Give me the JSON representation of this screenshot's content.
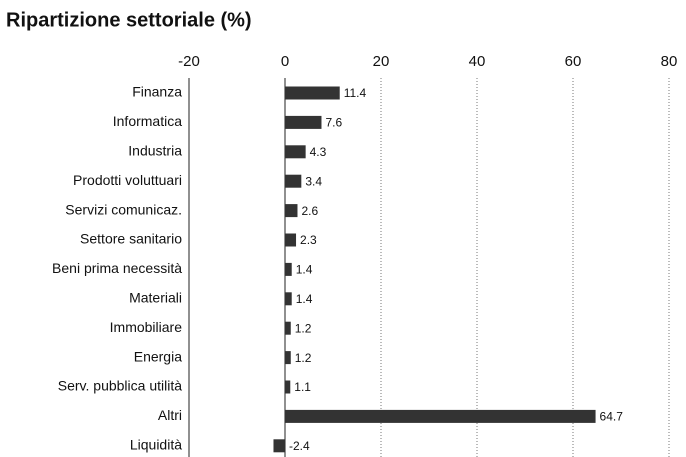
{
  "chart_data": {
    "type": "barh",
    "title": "Ripartizione settoriale (%)",
    "categories": [
      "Finanza",
      "Informatica",
      "Industria",
      "Prodotti voluttuari",
      "Servizi comunicaz.",
      "Settore sanitario",
      "Beni prima necessità",
      "Materiali",
      "Immobiliare",
      "Energia",
      "Serv. pubblica utilità",
      "Altri",
      "Liquidità"
    ],
    "values": [
      11.4,
      7.6,
      4.3,
      3.4,
      2.6,
      2.3,
      1.4,
      1.4,
      1.2,
      1.2,
      1.1,
      64.7,
      -2.4
    ],
    "color": "#333333",
    "xlim": [
      -20,
      80
    ],
    "xticks": [
      -20,
      0,
      20,
      40,
      60,
      80
    ],
    "grid": true
  }
}
